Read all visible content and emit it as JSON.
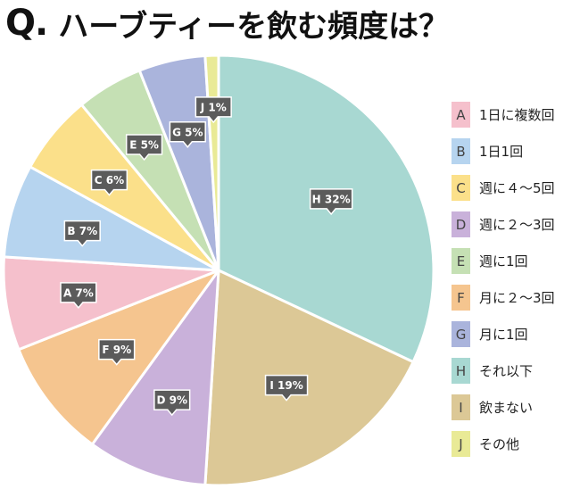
{
  "title": {
    "mark": "Q.",
    "text": "ハーブティーを飲む頻度は？"
  },
  "chart_data": {
    "type": "pie",
    "start_angle_deg": 0,
    "direction": "clockwise",
    "slices": [
      {
        "key": "H",
        "label": "それ以下",
        "value": 32,
        "color": "#a8d8d2"
      },
      {
        "key": "I",
        "label": "飲まない",
        "value": 19,
        "color": "#dcc896"
      },
      {
        "key": "D",
        "label": "週に２〜3回",
        "value": 9,
        "color": "#c9b1da"
      },
      {
        "key": "F",
        "label": "月に２〜3回",
        "value": 9,
        "color": "#f5c58f"
      },
      {
        "key": "A",
        "label": "1日に複数回",
        "value": 7,
        "color": "#f5c0cc"
      },
      {
        "key": "B",
        "label": "1日1回",
        "value": 7,
        "color": "#b6d4ef"
      },
      {
        "key": "C",
        "label": "週に４〜5回",
        "value": 6,
        "color": "#fbe08a"
      },
      {
        "key": "E",
        "label": "週に1回",
        "value": 5,
        "color": "#c5e0b4"
      },
      {
        "key": "G",
        "label": "月に1回",
        "value": 5,
        "color": "#aab4dc"
      },
      {
        "key": "J",
        "label": "その他",
        "value": 1,
        "color": "#e9ea96"
      }
    ],
    "data_labels": [
      "H 32%",
      "I 19%",
      "D 9%",
      "F 9%",
      "A 7%",
      "B 7%",
      "C 6%",
      "E 5%",
      "G 5%",
      "J 1%"
    ],
    "legend_order": [
      "A",
      "B",
      "C",
      "D",
      "E",
      "F",
      "G",
      "H",
      "I",
      "J"
    ],
    "legend_position": "right"
  }
}
